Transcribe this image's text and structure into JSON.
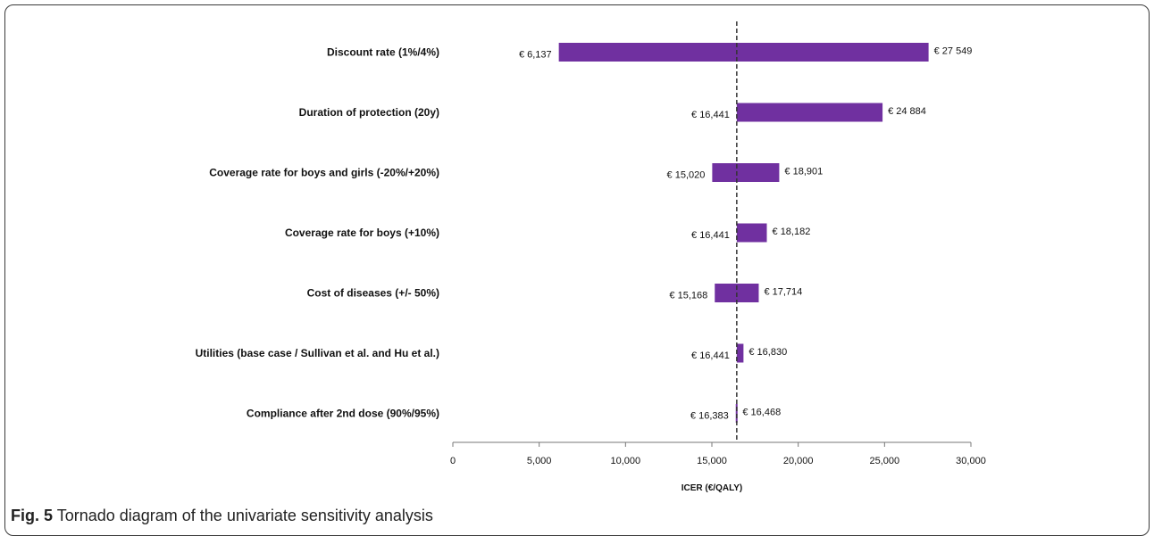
{
  "chart_data": {
    "type": "bar",
    "orientation": "horizontal",
    "subtype": "tornado",
    "xlabel": "ICER (€/QALY)",
    "xlim": [
      0,
      30000
    ],
    "xticks": [
      0,
      5000,
      10000,
      15000,
      20000,
      25000,
      30000
    ],
    "xtick_labels": [
      "0",
      "5,000",
      "10,000",
      "15,000",
      "20,000",
      "25,000",
      "30,000"
    ],
    "base_case": 16441,
    "bar_color": "#7030a0",
    "grid": false,
    "categories": [
      "Discount rate (1%/4%)",
      "Duration of protection (20y)",
      "Coverage rate for boys and girls (-20%/+20%)",
      "Coverage rate for boys (+10%)",
      "Cost of diseases (+/- 50%)",
      "Utilities (base case / Sullivan et al. and Hu et al.)",
      "Compliance after 2nd dose (90%/95%)"
    ],
    "low": [
      6137,
      16441,
      15020,
      16441,
      15168,
      16441,
      16383
    ],
    "high": [
      27549,
      24884,
      18901,
      18182,
      17714,
      16830,
      16468
    ],
    "low_labels": [
      "€ 6,137",
      "€ 16,441",
      "€ 15,020",
      "€ 16,441",
      "€ 15,168",
      "€ 16,441",
      "€ 16,383"
    ],
    "high_labels": [
      "€ 27 549",
      "€ 24 884",
      "€ 18,901",
      "€ 18,182",
      "€ 17,714",
      "€ 16,830",
      "€ 16,468"
    ]
  },
  "caption": {
    "label": "Fig. 5",
    "text": "Tornado diagram of the univariate sensitivity analysis"
  }
}
